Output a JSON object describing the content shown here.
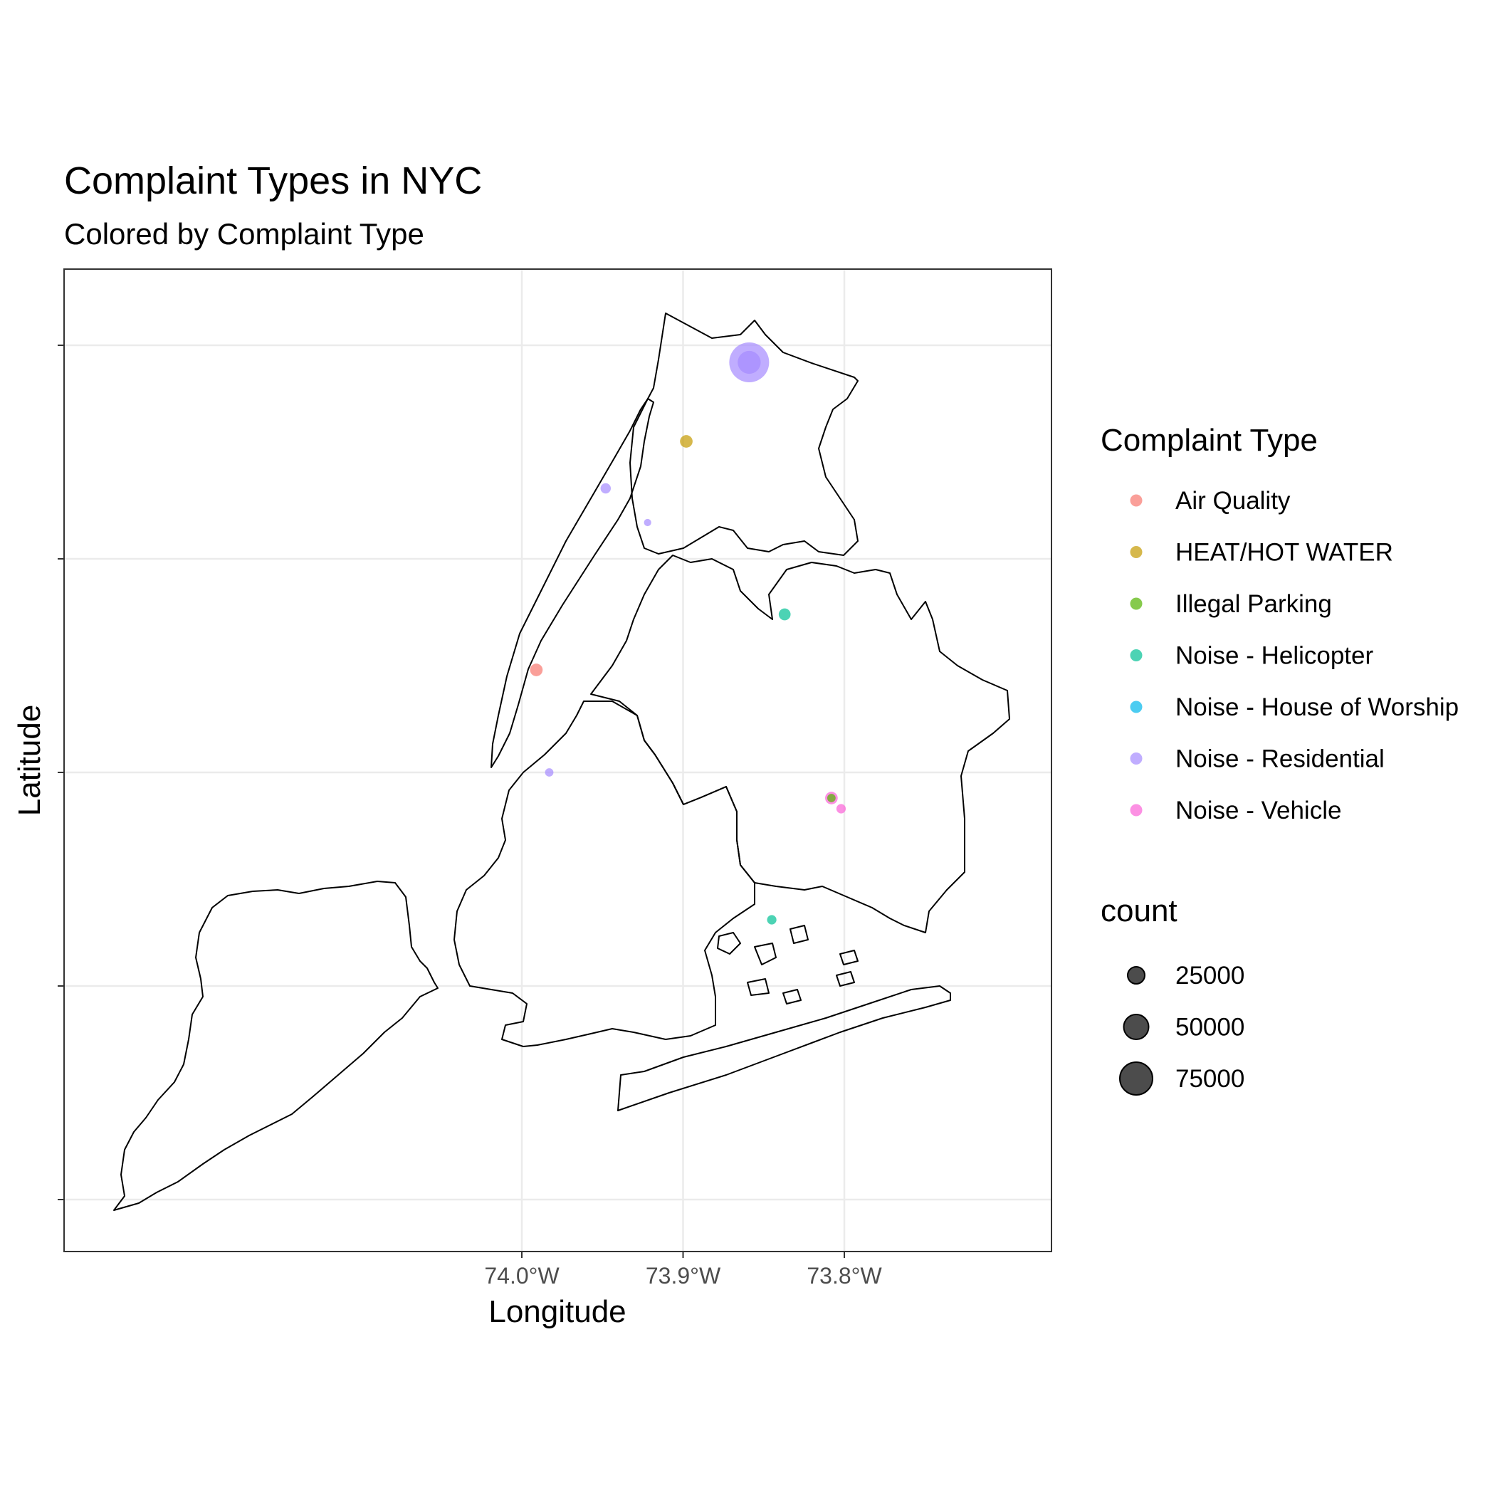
{
  "chart_data": {
    "type": "scatter",
    "title": "Complaint Types in NYC",
    "subtitle": "Colored by Complaint Type",
    "xlabel": "Longitude",
    "ylabel": "Latitude",
    "xlim": [
      -74.28,
      -73.67
    ],
    "ylim": [
      40.47,
      40.93
    ],
    "x_ticks": [
      {
        "value": -74.0,
        "label": "74.0°W"
      },
      {
        "value": -73.9,
        "label": "73.9°W"
      },
      {
        "value": -73.8,
        "label": "73.8°W"
      }
    ],
    "y_ticks": [
      40.9,
      40.8,
      40.7,
      40.6,
      40.5
    ],
    "grid": true,
    "legend_position": "right",
    "color_legend": {
      "title": "Complaint Type",
      "entries": [
        {
          "name": "Air Quality",
          "color": "#F8766D"
        },
        {
          "name": "HEAT/HOT WATER",
          "color": "#C49A00"
        },
        {
          "name": "Illegal Parking",
          "color": "#53B400"
        },
        {
          "name": "Noise - Helicopter",
          "color": "#00C094"
        },
        {
          "name": "Noise - House of Worship",
          "color": "#00B6EB"
        },
        {
          "name": "Noise - Residential",
          "color": "#A58AFF"
        },
        {
          "name": "Noise - Vehicle",
          "color": "#FB61D7"
        }
      ]
    },
    "size_legend": {
      "title": "count",
      "entries": [
        {
          "label": "25000",
          "value": 25000
        },
        {
          "label": "50000",
          "value": 50000
        },
        {
          "label": "75000",
          "value": 75000
        }
      ]
    },
    "points": [
      {
        "type": "Noise - Residential",
        "lon": -73.859,
        "lat": 40.892,
        "count": 90000
      },
      {
        "type": "Noise - Residential",
        "lon": -73.859,
        "lat": 40.892,
        "count": 30000
      },
      {
        "type": "HEAT/HOT WATER",
        "lon": -73.898,
        "lat": 40.855,
        "count": 9000
      },
      {
        "type": "Noise - Residential",
        "lon": -73.948,
        "lat": 40.833,
        "count": 6000
      },
      {
        "type": "Noise - Residential",
        "lon": -73.922,
        "lat": 40.817,
        "count": 3000
      },
      {
        "type": "Noise - Helicopter",
        "lon": -73.837,
        "lat": 40.774,
        "count": 8000
      },
      {
        "type": "Air Quality",
        "lon": -73.991,
        "lat": 40.748,
        "count": 9000
      },
      {
        "type": "Noise - Vehicle",
        "lon": -73.808,
        "lat": 40.688,
        "count": 9000
      },
      {
        "type": "Illegal Parking",
        "lon": -73.808,
        "lat": 40.688,
        "count": 4000
      },
      {
        "type": "Noise - Vehicle",
        "lon": -73.802,
        "lat": 40.683,
        "count": 5000
      },
      {
        "type": "Noise - Residential",
        "lon": -73.983,
        "lat": 40.7,
        "count": 4000
      },
      {
        "type": "Noise - Helicopter",
        "lon": -73.845,
        "lat": 40.631,
        "count": 5000
      }
    ],
    "max_count": 90000
  }
}
